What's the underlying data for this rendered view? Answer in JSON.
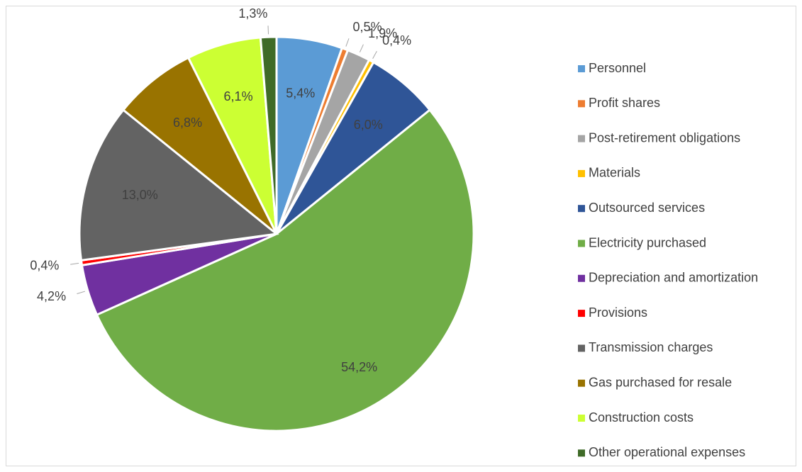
{
  "chart_data": {
    "type": "pie",
    "categories": [
      "Personnel",
      "Profit shares",
      "Post-retirement obligations",
      "Materials",
      "Outsourced services",
      "Electricity purchased",
      "Depreciation and amortization",
      "Provisions",
      "Transmission charges",
      "Gas purchased for resale",
      "Construction costs",
      "Other operational expenses"
    ],
    "values": [
      5.4,
      0.5,
      1.9,
      0.4,
      6.0,
      54.2,
      4.2,
      0.4,
      13.0,
      6.8,
      6.1,
      1.3
    ],
    "value_labels": [
      "5,4%",
      "0,5%",
      "1,9%",
      "0,4%",
      "6,0%",
      "54,2%",
      "4,2%",
      "0,4%",
      "13,0%",
      "6,8%",
      "6,1%",
      "1,3%"
    ],
    "colors": [
      "#5b9bd5",
      "#ed7d31",
      "#a5a5a5",
      "#ffc000",
      "#2f5597",
      "#70ad47",
      "#7030a0",
      "#ff0000",
      "#636363",
      "#997300",
      "#ccff33",
      "#3f6b28"
    ],
    "legend": "right"
  }
}
